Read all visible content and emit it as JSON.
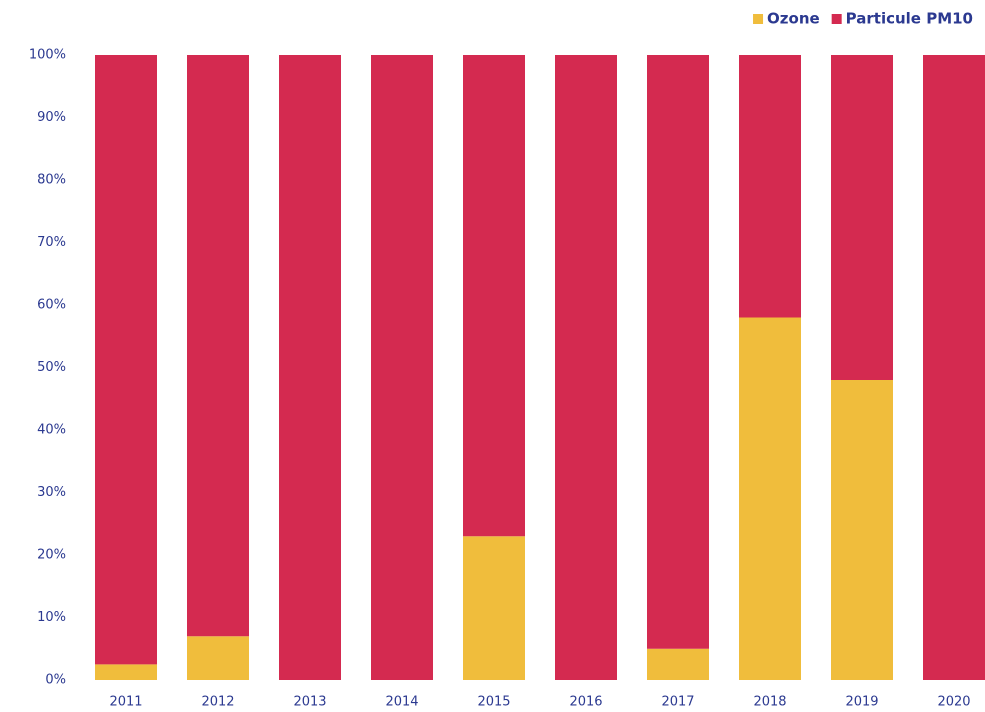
{
  "chart_data": {
    "type": "stacked_bar",
    "categories": [
      "2011",
      "2012",
      "2013",
      "2014",
      "2015",
      "2016",
      "2017",
      "2018",
      "2019",
      "2020"
    ],
    "series": [
      {
        "name": "Ozone",
        "color": "#f0bd3c",
        "values": [
          2.5,
          7,
          0,
          0,
          23,
          0,
          5,
          58,
          48,
          0
        ]
      },
      {
        "name": "Particule PM10",
        "color": "#d42a50",
        "values": [
          97.5,
          93,
          100,
          100,
          77,
          100,
          95,
          42,
          52,
          100
        ]
      }
    ],
    "ylim": [
      0,
      100
    ],
    "yticks": [
      {
        "value": 0,
        "label": "0%"
      },
      {
        "value": 10,
        "label": "10%"
      },
      {
        "value": 20,
        "label": "20%"
      },
      {
        "value": 30,
        "label": "30%"
      },
      {
        "value": 40,
        "label": "40%"
      },
      {
        "value": 50,
        "label": "50%"
      },
      {
        "value": 60,
        "label": "60%"
      },
      {
        "value": 70,
        "label": "70%"
      },
      {
        "value": 80,
        "label": "80%"
      },
      {
        "value": 90,
        "label": "90%"
      },
      {
        "value": 100,
        "label": "100%"
      }
    ],
    "legend": "top-right"
  }
}
